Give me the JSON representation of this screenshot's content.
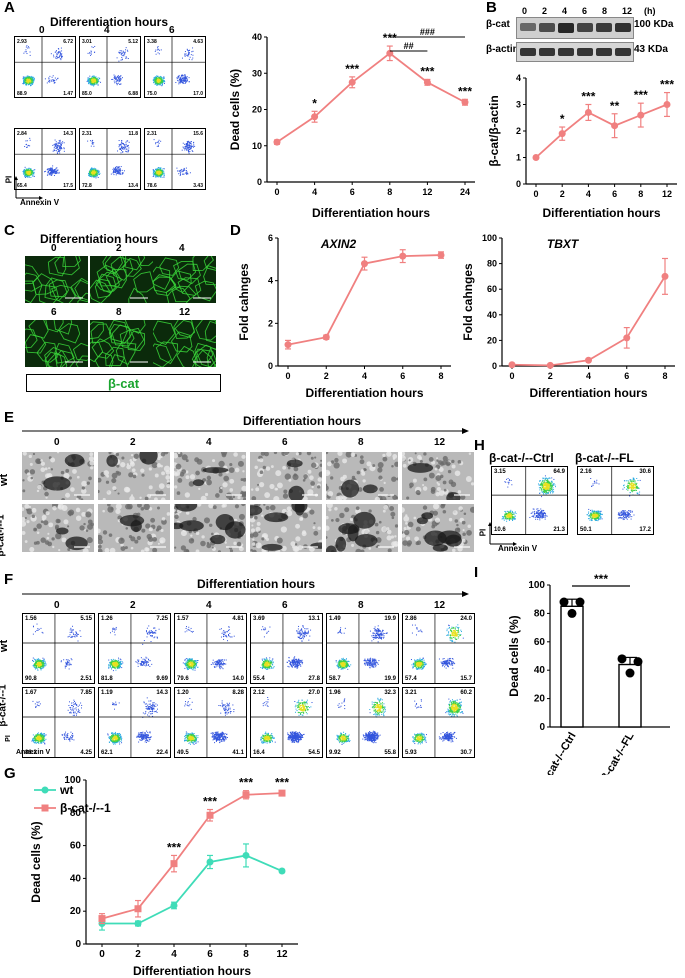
{
  "panel_labels": {
    "A": "A",
    "B": "B",
    "C": "C",
    "D": "D",
    "E": "E",
    "F": "F",
    "G": "G",
    "H": "H",
    "I": "I"
  },
  "panelA": {
    "title": "Differentiation hours",
    "ylabel": "PI",
    "xlabel": "Annexin V",
    "plots": [
      {
        "hour": "0",
        "q": [
          "2.93",
          "6.72",
          "88.9",
          "1.47"
        ]
      },
      {
        "hour": "4",
        "q": [
          "3.01",
          "5.12",
          "85.0",
          "6.88"
        ]
      },
      {
        "hour": "6",
        "q": [
          "3.38",
          "4.63",
          "75.0",
          "17.0"
        ]
      },
      {
        "hour": "8",
        "q": [
          "2.84",
          "14.3",
          "65.4",
          "17.5"
        ]
      },
      {
        "hour": "12",
        "q": [
          "2.31",
          "11.8",
          "72.8",
          "13.4"
        ]
      },
      {
        "hour": "24",
        "q": [
          "2.31",
          "15.6",
          "78.6",
          "3.43"
        ]
      }
    ]
  },
  "panelB": {
    "hours": [
      "0",
      "2",
      "4",
      "6",
      "8",
      "12"
    ],
    "hours_unit": "(h)",
    "band1": "β-cat",
    "band1_kda": "100 KDa",
    "band2": "β-actin",
    "band2_kda": "43 KDa"
  },
  "panelC": {
    "title": "Differentiation hours",
    "hours": [
      "0",
      "2",
      "4",
      "6",
      "8",
      "12"
    ],
    "caption": "β-cat"
  },
  "panelE": {
    "title": "Differentiation hours",
    "hours": [
      "0",
      "2",
      "4",
      "6",
      "8",
      "12"
    ],
    "rows": [
      "wt",
      "β-cat-/--1"
    ]
  },
  "panelF": {
    "title": "Differentiation hours",
    "hours": [
      "0",
      "2",
      "4",
      "6",
      "8",
      "12"
    ],
    "rows": [
      "wt",
      "β-cat-/--1"
    ],
    "ylabel": "PI",
    "xlabel": "Annexin V",
    "wt": [
      [
        "1.56",
        "5.15",
        "90.8",
        "2.51"
      ],
      [
        "1.26",
        "7.25",
        "81.8",
        "9.69"
      ],
      [
        "1.57",
        "4.81",
        "79.6",
        "14.0"
      ],
      [
        "3.69",
        "13.1",
        "55.4",
        "27.8"
      ],
      [
        "1.49",
        "19.9",
        "58.7",
        "19.9"
      ],
      [
        "2.86",
        "24.0",
        "57.4",
        "15.7"
      ]
    ],
    "ko": [
      [
        "1.67",
        "7.85",
        "86.2",
        "4.25"
      ],
      [
        "1.19",
        "14.3",
        "62.1",
        "22.4"
      ],
      [
        "1.20",
        "8.28",
        "49.5",
        "41.1"
      ],
      [
        "2.12",
        "27.0",
        "16.4",
        "54.5"
      ],
      [
        "1.96",
        "32.3",
        "9.92",
        "55.8"
      ],
      [
        "3.21",
        "60.2",
        "5.93",
        "30.7"
      ]
    ]
  },
  "panelH": {
    "titles": [
      "β-cat-/--Ctrl",
      "β-cat-/--FL"
    ],
    "ylabel": "PI",
    "xlabel": "Annexin V",
    "q": [
      [
        "3.15",
        "64.9",
        "10.6",
        "21.3"
      ],
      [
        "2.16",
        "30.6",
        "50.1",
        "17.2"
      ]
    ]
  },
  "colors": {
    "salmon": "#f08080",
    "teal": "#3fdcb8",
    "green": "#22c55e"
  },
  "chart_data": [
    {
      "id": "A-right",
      "type": "line",
      "categories": [
        "0",
        "4",
        "6",
        "8",
        "12",
        "24"
      ],
      "values": [
        11,
        18,
        27.5,
        35.5,
        27.5,
        22
      ],
      "errors": [
        0.6,
        1.5,
        1.5,
        2,
        0.8,
        0.8
      ],
      "sig": [
        "",
        "*",
        "***",
        "***",
        "***",
        "***"
      ],
      "brackets": [
        {
          "from": 3,
          "to": 4,
          "label": "##"
        },
        {
          "from": 3,
          "to": 5,
          "label": "###"
        }
      ],
      "xlabel": "Differentiation hours",
      "ylabel": "Dead cells (%)",
      "ylim": [
        0,
        40
      ],
      "yticks": [
        "0",
        "10",
        "20",
        "30",
        "40"
      ]
    },
    {
      "id": "B-bottom",
      "type": "line",
      "categories": [
        "0",
        "2",
        "4",
        "6",
        "8",
        "12"
      ],
      "values": [
        1,
        1.9,
        2.7,
        2.2,
        2.6,
        3.0
      ],
      "errors": [
        0.05,
        0.25,
        0.3,
        0.45,
        0.45,
        0.45
      ],
      "sig": [
        "",
        "*",
        "***",
        "**",
        "***",
        "***"
      ],
      "xlabel": "Differentiation  hours",
      "ylabel": "β-cat/β-actin",
      "ylim": [
        0,
        4
      ],
      "yticks": [
        "0",
        "1",
        "2",
        "3",
        "4"
      ]
    },
    {
      "id": "D-axin2",
      "type": "line",
      "categories": [
        "0",
        "2",
        "4",
        "6",
        "8"
      ],
      "values": [
        1.0,
        1.35,
        4.8,
        5.15,
        5.2
      ],
      "errors": [
        0.2,
        0.1,
        0.3,
        0.3,
        0.15
      ],
      "title": "AXIN2",
      "xlabel": "Differentiation  hours",
      "ylabel": "Fold cahnges",
      "ylim": [
        0,
        6
      ],
      "yticks": [
        "0",
        "2",
        "4",
        "6"
      ]
    },
    {
      "id": "D-tbxt",
      "type": "line",
      "categories": [
        "0",
        "2",
        "4",
        "6",
        "8"
      ],
      "values": [
        1,
        0.5,
        4.5,
        22,
        70
      ],
      "errors": [
        0.5,
        0.5,
        1,
        8,
        14
      ],
      "title": "TBXT",
      "xlabel": "Differentiation  hours",
      "ylabel": "Fold cahnges",
      "ylim": [
        0,
        100
      ],
      "yticks": [
        "0",
        "20",
        "40",
        "60",
        "80",
        "100"
      ]
    },
    {
      "id": "G",
      "type": "line",
      "categories": [
        "0",
        "2",
        "4",
        "6",
        "8",
        "12"
      ],
      "series": [
        {
          "name": "wt",
          "values": [
            12.5,
            12.5,
            23.5,
            50,
            54,
            44.5
          ],
          "errors": [
            4,
            1.5,
            2,
            4,
            7,
            1
          ]
        },
        {
          "name": "β-cat-/--1",
          "values": [
            15.5,
            21.5,
            49,
            78.5,
            91,
            92
          ],
          "errors": [
            3,
            5,
            5,
            3.5,
            2.5,
            1.5
          ]
        }
      ],
      "sig": [
        "",
        "",
        "***",
        "***",
        "***",
        "***"
      ],
      "xlabel": "Differentiation hours",
      "ylabel": "Dead cells (%)",
      "ylim": [
        0,
        100
      ],
      "yticks": [
        "0",
        "20",
        "40",
        "60",
        "80",
        "100"
      ]
    },
    {
      "id": "I",
      "type": "bar",
      "categories": [
        "β-cat-/--Ctrl",
        "β-cat-/--FL"
      ],
      "values": [
        85,
        44
      ],
      "errors": [
        5,
        5
      ],
      "points": [
        [
          88,
          80,
          88
        ],
        [
          48,
          38,
          46
        ]
      ],
      "sig": "***",
      "ylabel": "Dead cells (%)",
      "ylim": [
        0,
        100
      ],
      "yticks": [
        "0",
        "20",
        "40",
        "60",
        "80",
        "100"
      ]
    }
  ]
}
